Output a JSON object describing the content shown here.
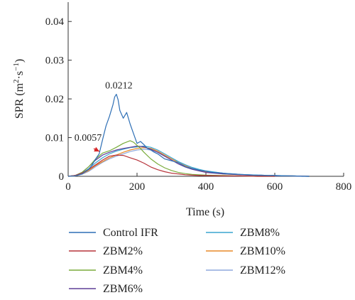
{
  "chart_data": {
    "type": "line",
    "title": "",
    "xlabel": "Time (s)",
    "ylabel_main": "SPR (m",
    "ylabel_sup1": "2",
    "ylabel_mid": "·s",
    "ylabel_sup2": "−1",
    "ylabel_end": ")",
    "xlim": [
      0,
      800
    ],
    "ylim": [
      0,
      0.045
    ],
    "x_ticks": [
      0,
      200,
      400,
      600,
      800
    ],
    "x_tick_labels": [
      "0",
      "200",
      "400",
      "600",
      "800"
    ],
    "y_ticks": [
      0,
      0.01,
      0.02,
      0.03,
      0.04
    ],
    "y_tick_labels": [
      "0",
      "0.01",
      "0.02",
      "0.03",
      "0.04"
    ],
    "grid": false,
    "legend_position": "below",
    "annotations": [
      {
        "text": "0.0212",
        "x": 143,
        "y": 0.0212,
        "arrow": false
      },
      {
        "text": "0.0057",
        "x": 97,
        "y": 0.0057,
        "arrow": true,
        "arrow_color": "#d62728"
      }
    ],
    "series": [
      {
        "name": "Control IFR",
        "color": "#2e6fb5",
        "x": [
          0,
          20,
          40,
          60,
          70,
          80,
          90,
          100,
          110,
          120,
          130,
          135,
          140,
          145,
          150,
          160,
          170,
          180,
          190,
          200,
          210,
          220,
          230,
          240,
          250,
          260,
          280,
          300,
          320,
          340,
          360,
          380,
          400,
          420,
          440,
          460,
          480,
          500,
          520,
          540,
          560,
          580,
          600,
          620,
          640,
          660,
          680,
          700
        ],
        "y": [
          0,
          0.0001,
          0.0006,
          0.0018,
          0.003,
          0.0045,
          0.0058,
          0.0095,
          0.013,
          0.0155,
          0.0185,
          0.0205,
          0.0212,
          0.0198,
          0.017,
          0.015,
          0.0165,
          0.0135,
          0.011,
          0.0085,
          0.009,
          0.0082,
          0.0072,
          0.0068,
          0.0062,
          0.0058,
          0.0045,
          0.004,
          0.0035,
          0.0025,
          0.002,
          0.0016,
          0.0013,
          0.001,
          0.0009,
          0.0007,
          0.0006,
          0.0005,
          0.0004,
          0.0003,
          0.0003,
          0.0002,
          0.0002,
          0.0001,
          0.0001,
          0.0001,
          0,
          0
        ]
      },
      {
        "name": "ZBM2%",
        "color": "#b7333a",
        "x": [
          0,
          20,
          40,
          60,
          80,
          100,
          120,
          140,
          160,
          180,
          200,
          220,
          240,
          260,
          280,
          300,
          320,
          340,
          360,
          380,
          400,
          450,
          500,
          550,
          600
        ],
        "y": [
          0,
          0.0002,
          0.0008,
          0.0018,
          0.003,
          0.0042,
          0.0052,
          0.0055,
          0.0054,
          0.0048,
          0.0042,
          0.0034,
          0.0024,
          0.0017,
          0.0012,
          0.0008,
          0.0006,
          0.0004,
          0.0003,
          0.0002,
          0.0002,
          0.0001,
          0.0001,
          0,
          0
        ]
      },
      {
        "name": "ZBM4%",
        "color": "#7aac3c",
        "x": [
          0,
          20,
          40,
          60,
          80,
          100,
          120,
          140,
          160,
          180,
          190,
          200,
          210,
          220,
          240,
          260,
          280,
          300,
          320,
          340,
          360,
          400,
          450,
          500,
          550,
          600
        ],
        "y": [
          0,
          0.0002,
          0.001,
          0.0025,
          0.0045,
          0.006,
          0.0066,
          0.0075,
          0.0085,
          0.0092,
          0.0088,
          0.008,
          0.0072,
          0.0062,
          0.0045,
          0.0032,
          0.0022,
          0.0015,
          0.001,
          0.0007,
          0.0005,
          0.0003,
          0.0002,
          0.0001,
          0,
          0
        ]
      },
      {
        "name": "ZBM6%",
        "color": "#5f3f97",
        "x": [
          0,
          20,
          40,
          60,
          80,
          100,
          120,
          140,
          160,
          180,
          200,
          220,
          240,
          260,
          280,
          300,
          320,
          340,
          360,
          380,
          400,
          450,
          500,
          550,
          600,
          650,
          700
        ],
        "y": [
          0,
          0.0002,
          0.001,
          0.0025,
          0.0042,
          0.0055,
          0.0062,
          0.0068,
          0.0072,
          0.0075,
          0.0078,
          0.0076,
          0.007,
          0.0062,
          0.0052,
          0.0042,
          0.0032,
          0.0024,
          0.0018,
          0.0014,
          0.001,
          0.0006,
          0.0004,
          0.0002,
          0.0001,
          0.0001,
          0
        ]
      },
      {
        "name": "ZBM8%",
        "color": "#3aa6cf",
        "x": [
          0,
          20,
          40,
          60,
          80,
          100,
          120,
          140,
          160,
          180,
          200,
          220,
          240,
          260,
          280,
          300,
          320,
          340,
          360,
          380,
          400,
          450,
          500,
          550,
          600,
          650,
          700
        ],
        "y": [
          0,
          0.0002,
          0.0008,
          0.002,
          0.0035,
          0.0048,
          0.0058,
          0.0065,
          0.007,
          0.0074,
          0.0076,
          0.0078,
          0.0075,
          0.0068,
          0.0058,
          0.0048,
          0.0038,
          0.003,
          0.0023,
          0.0018,
          0.0014,
          0.0008,
          0.0005,
          0.0003,
          0.0002,
          0.0001,
          0
        ]
      },
      {
        "name": "ZBM10%",
        "color": "#e98a28",
        "x": [
          0,
          20,
          40,
          60,
          80,
          100,
          120,
          140,
          160,
          180,
          200,
          220,
          240,
          260,
          280,
          300,
          320,
          340,
          360,
          380,
          400,
          450,
          500,
          550,
          600,
          650,
          700
        ],
        "y": [
          0,
          0.0001,
          0.0006,
          0.0015,
          0.0028,
          0.0038,
          0.0048,
          0.0055,
          0.0062,
          0.0068,
          0.0072,
          0.0074,
          0.0072,
          0.0065,
          0.0055,
          0.0045,
          0.0035,
          0.0027,
          0.002,
          0.0015,
          0.0011,
          0.0006,
          0.0004,
          0.0002,
          0.0001,
          0.0001,
          0
        ]
      },
      {
        "name": "ZBM12%",
        "color": "#8fa9dd",
        "x": [
          0,
          20,
          40,
          60,
          80,
          100,
          120,
          140,
          160,
          180,
          200,
          220,
          240,
          260,
          280,
          300,
          320,
          340,
          360,
          380,
          400,
          450,
          500,
          550,
          600,
          650,
          700
        ],
        "y": [
          0,
          0.0001,
          0.0005,
          0.0013,
          0.0025,
          0.0036,
          0.0045,
          0.0052,
          0.0058,
          0.0064,
          0.0068,
          0.007,
          0.0068,
          0.0062,
          0.0054,
          0.0045,
          0.0036,
          0.0028,
          0.0022,
          0.0017,
          0.0013,
          0.0008,
          0.0005,
          0.0003,
          0.0002,
          0.0001,
          0
        ]
      }
    ]
  }
}
